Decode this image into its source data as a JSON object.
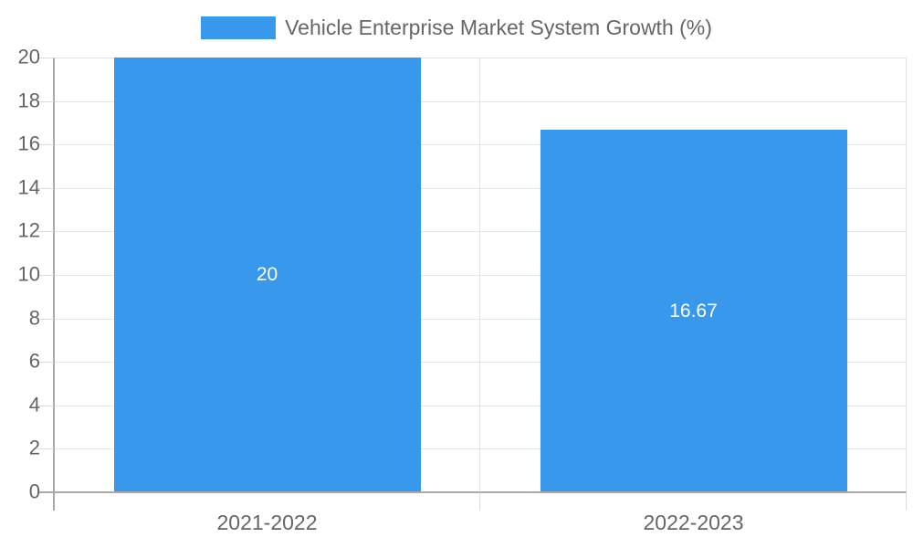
{
  "legend": {
    "label": "Vehicle Enterprise Market System Growth (%)"
  },
  "colors": {
    "bar": "#3898EC",
    "grid": "#E5E5E5",
    "axis": "#A9A9A9",
    "tick": "#DCDCDC",
    "text": "#666666",
    "bar_label": "#FFFFFF",
    "background": "#FFFFFF"
  },
  "chart_data": {
    "type": "bar",
    "title": "Vehicle Enterprise Market System Growth (%)",
    "categories": [
      "2021-2022",
      "2022-2023"
    ],
    "values": [
      20,
      16.67
    ],
    "bar_labels": [
      "20",
      "16.67"
    ],
    "xlabel": "",
    "ylabel": "",
    "ylim": [
      0,
      20
    ],
    "yticks": [
      0,
      2,
      4,
      6,
      8,
      10,
      12,
      14,
      16,
      18,
      20
    ],
    "grid": true,
    "legend_position": "top"
  }
}
